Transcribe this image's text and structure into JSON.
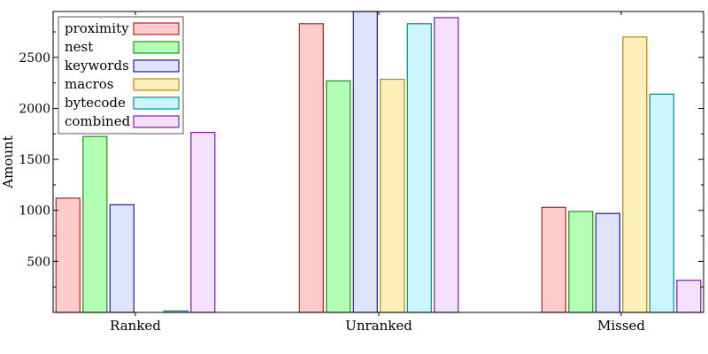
{
  "chart_data": {
    "type": "bar",
    "title": "",
    "xlabel": "",
    "ylabel": "Amount",
    "ylim": [
      0,
      2950
    ],
    "yticks": [
      500,
      1000,
      1500,
      2000,
      2500
    ],
    "grid": false,
    "legend_position": "top-left",
    "categories": [
      "Ranked",
      "Unranked",
      "Missed"
    ],
    "series": [
      {
        "name": "proximity",
        "values": [
          1120,
          2830,
          1030
        ],
        "fill": "#ffcccc",
        "stroke": "#b22222"
      },
      {
        "name": "nest",
        "values": [
          1725,
          2270,
          990
        ],
        "fill": "#b3ffb3",
        "stroke": "#228b22"
      },
      {
        "name": "keywords",
        "values": [
          1055,
          2950,
          970
        ],
        "fill": "#e0e4fa",
        "stroke": "#1c1c8c"
      },
      {
        "name": "macros",
        "values": [
          0,
          2285,
          2700
        ],
        "fill": "#ffefba",
        "stroke": "#b8860b"
      },
      {
        "name": "bytecode",
        "values": [
          15,
          2830,
          2140
        ],
        "fill": "#ccf5ff",
        "stroke": "#008b8b"
      },
      {
        "name": "combined",
        "values": [
          1765,
          2890,
          315
        ],
        "fill": "#f5e0ff",
        "stroke": "#7b1fa2"
      }
    ]
  }
}
